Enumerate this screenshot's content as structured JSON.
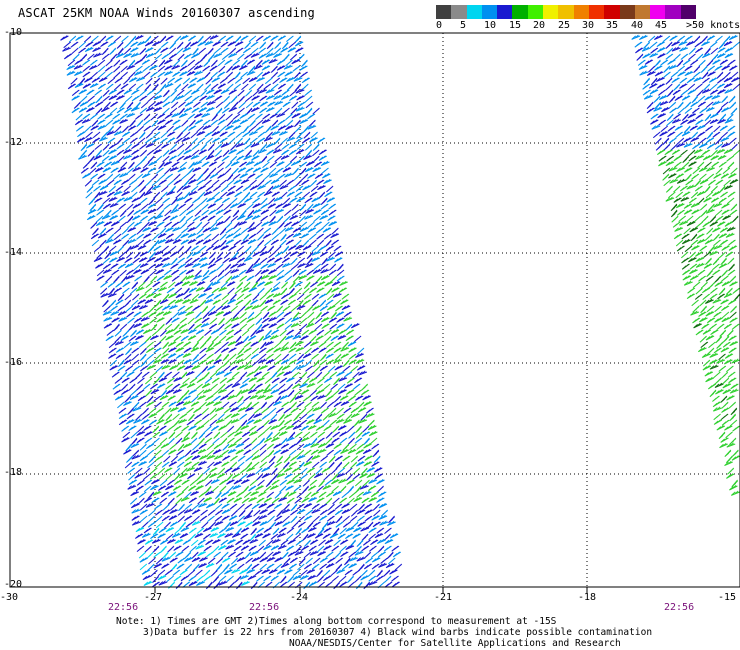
{
  "title": "ASCAT 25KM NOAA Winds 20160307 ascending",
  "legend": {
    "labels": [
      "0",
      "5",
      "10",
      "15",
      "20",
      "25",
      "30",
      "35",
      "40",
      "45",
      ">50 knots"
    ],
    "colors": [
      "#404040",
      "#8a8a8a",
      "#00d5f0",
      "#0090f0",
      "#1a1ad0",
      "#00b000",
      "#40f000",
      "#f0f000",
      "#f0c000",
      "#f08000",
      "#f03000",
      "#d00000",
      "#7a3a1a",
      "#c07830",
      "#f000f0",
      "#a000c0",
      "#50006a"
    ]
  },
  "axes": {
    "y_ticks": [
      "-10",
      "-12",
      "-14",
      "-16",
      "-18",
      "-20"
    ],
    "x_ticks": [
      "-30",
      "-27",
      "-24",
      "-21",
      "-18",
      "-15"
    ]
  },
  "swath_times": [
    "22:56",
    "22:56",
    "22:56"
  ],
  "notes": {
    "line1": "Note: 1) Times are GMT 2)Times along bottom correspond to measurement at -15S",
    "line2": "3)Data buffer is 22 hrs from 20160307 4) Black wind barbs indicate possible contamination",
    "line3": "NOAA/NESDIS/Center for Satellite Applications and Research"
  },
  "barb_colors": {
    "blue": "#1a1ad0",
    "mid_blue": "#0090f0",
    "cyan": "#00d5f0",
    "green": "#30d030",
    "dark_green": "#107010"
  }
}
